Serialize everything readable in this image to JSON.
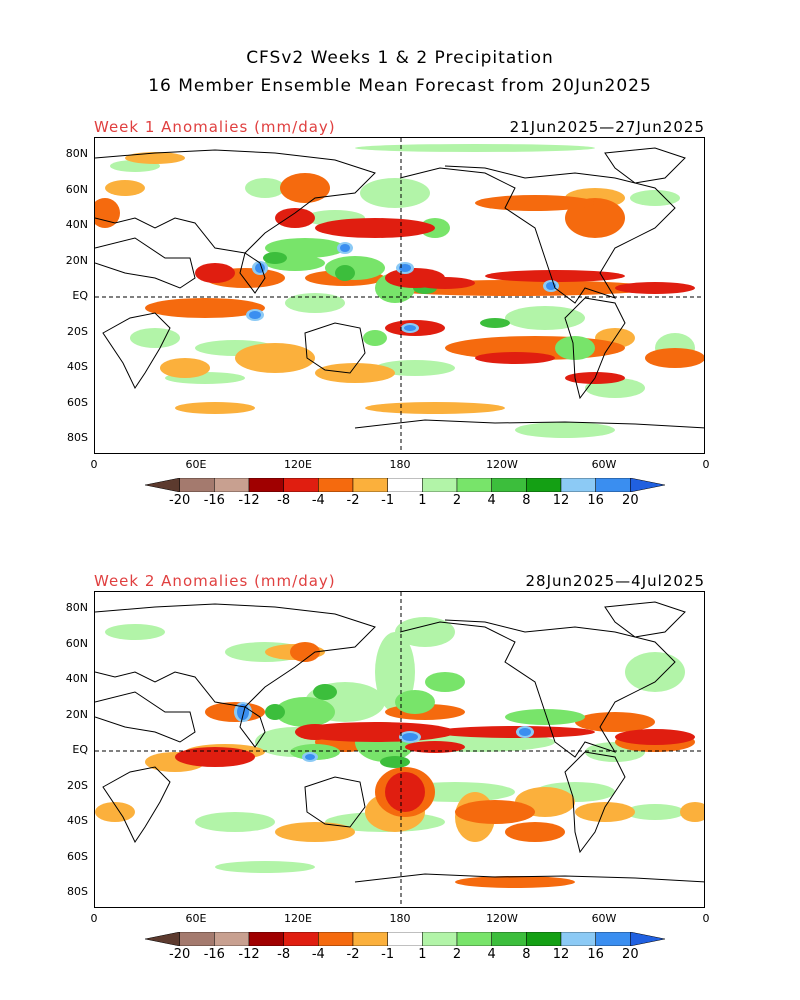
{
  "title": {
    "line1": "CFSv2 Weeks 1 & 2 Precipitation",
    "line2": "16 Member Ensemble Mean Forecast from 20Jun2025"
  },
  "panels": [
    {
      "label": "Week 1 Anomalies (mm/day)",
      "dates": "21Jun2025—27Jun2025"
    },
    {
      "label": "Week 2 Anomalies (mm/day)",
      "dates": "28Jun2025—4Jul2025"
    }
  ],
  "lat_ticks": [
    "80N",
    "60N",
    "40N",
    "20N",
    "EQ",
    "20S",
    "40S",
    "60S",
    "80S"
  ],
  "lon_ticks": [
    "0",
    "60E",
    "120E",
    "180",
    "120W",
    "60W",
    "0"
  ],
  "colorbar": {
    "labels": [
      "-20",
      "-16",
      "-12",
      "-8",
      "-4",
      "-2",
      "-1",
      "1",
      "2",
      "4",
      "8",
      "12",
      "16",
      "20"
    ],
    "colors": [
      "#5c3a2e",
      "#a47a6e",
      "#c8a090",
      "#a00000",
      "#e01e10",
      "#f56a0e",
      "#fbb03c",
      "#ffffff",
      "#b2f4a8",
      "#78e46a",
      "#3cbe3c",
      "#14a014",
      "#8ccaf5",
      "#3a8ef0",
      "#2060e0"
    ]
  }
}
